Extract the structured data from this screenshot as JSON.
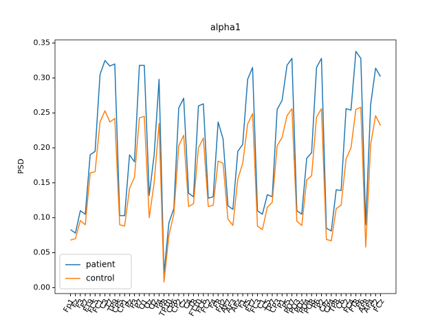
{
  "chart_data": {
    "type": "line",
    "title": "alpha1",
    "ylabel": "PSD",
    "categories": [
      "Fp1",
      "Fz",
      "F3",
      "F7",
      "FT9",
      "FC5",
      "FC1",
      "C3",
      "T7",
      "TP9",
      "CP5",
      "CP1",
      "Pz",
      "P3",
      "P7",
      "O1",
      "Oz",
      "O2",
      "P4",
      "P8",
      "TP10",
      "CP6",
      "CP2",
      "Cz",
      "C4",
      "T8",
      "FT10",
      "FC6",
      "FC2",
      "F4",
      "F8",
      "Fp2",
      "AF7",
      "AF3",
      "AFz",
      "F1",
      "F5",
      "FT7",
      "FC3",
      "C1",
      "C5",
      "TP7",
      "CP3",
      "P1",
      "P5",
      "PO7",
      "PO3",
      "POz",
      "PO4",
      "PO8",
      "P6",
      "P2",
      "CPz",
      "CP4",
      "TP8",
      "C6",
      "C2",
      "FC4",
      "FT8",
      "F6",
      "AF8",
      "AF4",
      "F2",
      "FCz"
    ],
    "series": [
      {
        "name": "patient",
        "color": "#1f77b4",
        "values": [
          0.083,
          0.078,
          0.11,
          0.105,
          0.19,
          0.195,
          0.305,
          0.325,
          0.317,
          0.32,
          0.103,
          0.103,
          0.19,
          0.18,
          0.318,
          0.318,
          0.132,
          0.19,
          0.298,
          0.02,
          0.093,
          0.113,
          0.257,
          0.271,
          0.135,
          0.13,
          0.26,
          0.263,
          0.128,
          0.13,
          0.237,
          0.213,
          0.117,
          0.112,
          0.195,
          0.205,
          0.298,
          0.315,
          0.11,
          0.105,
          0.133,
          0.13,
          0.255,
          0.268,
          0.318,
          0.328,
          0.11,
          0.105,
          0.185,
          0.193,
          0.315,
          0.328,
          0.085,
          0.081,
          0.14,
          0.139,
          0.256,
          0.254,
          0.338,
          0.328,
          0.09,
          0.262,
          0.314,
          0.302
        ]
      },
      {
        "name": "control",
        "color": "#ff7f0e",
        "values": [
          0.068,
          0.07,
          0.096,
          0.09,
          0.164,
          0.166,
          0.237,
          0.253,
          0.237,
          0.242,
          0.09,
          0.088,
          0.142,
          0.158,
          0.243,
          0.245,
          0.1,
          0.15,
          0.235,
          0.008,
          0.075,
          0.105,
          0.203,
          0.218,
          0.116,
          0.12,
          0.2,
          0.214,
          0.116,
          0.118,
          0.181,
          0.178,
          0.098,
          0.089,
          0.155,
          0.178,
          0.234,
          0.249,
          0.088,
          0.083,
          0.115,
          0.122,
          0.203,
          0.215,
          0.246,
          0.256,
          0.095,
          0.089,
          0.154,
          0.16,
          0.244,
          0.256,
          0.069,
          0.067,
          0.113,
          0.118,
          0.184,
          0.2,
          0.255,
          0.258,
          0.058,
          0.205,
          0.246,
          0.232
        ]
      }
    ],
    "ylim": [
      -0.0085,
      0.3545
    ],
    "yticks": [
      {
        "value": 0,
        "label": "0.00"
      },
      {
        "value": 0.05,
        "label": "0.05"
      },
      {
        "value": 0.1,
        "label": "0.10"
      },
      {
        "value": 0.15,
        "label": "0.15"
      },
      {
        "value": 0.2,
        "label": "0.20"
      },
      {
        "value": 0.25,
        "label": "0.25"
      },
      {
        "value": 0.3,
        "label": "0.30"
      },
      {
        "value": 0.35,
        "label": "0.35"
      }
    ],
    "legend": "lower left",
    "grid": false
  }
}
